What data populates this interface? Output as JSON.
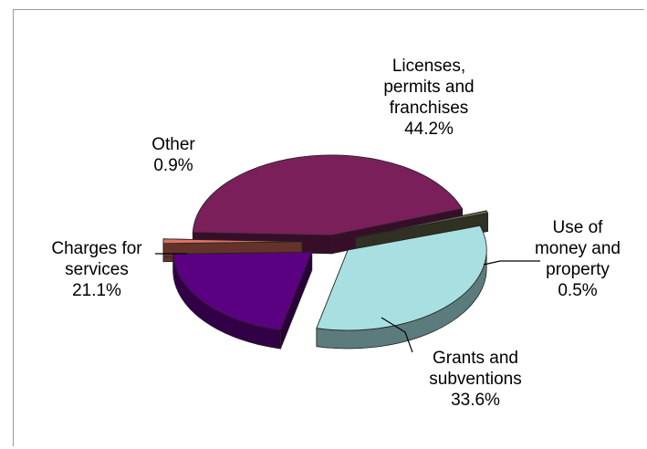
{
  "chart_data": {
    "type": "pie",
    "style": "3d-exploded",
    "legend": "none",
    "slices": [
      {
        "name": "Licenses, permits and franchises",
        "label_lines": [
          "Licenses,",
          "permits and",
          "franchises"
        ],
        "value": 44.2,
        "value_label": "44.2%",
        "color": "#7a1f5a"
      },
      {
        "name": "Use of money and property",
        "label_lines": [
          "Use of",
          "money and",
          "property"
        ],
        "value": 0.5,
        "value_label": "0.5%",
        "color": "#6b6b4e"
      },
      {
        "name": "Grants and subventions",
        "label_lines": [
          "Grants and",
          "subventions"
        ],
        "value": 33.6,
        "value_label": "33.6%",
        "color": "#a8e0e2"
      },
      {
        "name": "Charges for services",
        "label_lines": [
          "Charges for",
          "services"
        ],
        "value": 21.1,
        "value_label": "21.1%",
        "color": "#5a0080"
      },
      {
        "name": "Other",
        "label_lines": [
          "Other"
        ],
        "value": 0.9,
        "value_label": "0.9%",
        "color": "#e07060"
      }
    ]
  }
}
